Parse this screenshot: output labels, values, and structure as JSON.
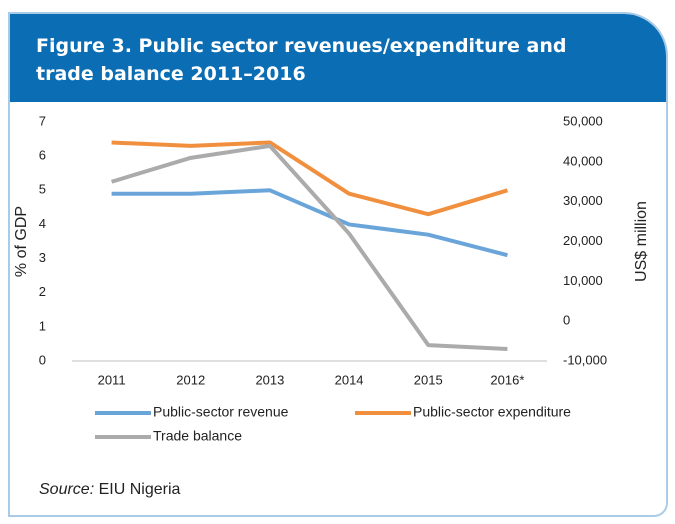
{
  "chart_data": {
    "type": "line",
    "title": "Figure 3. Public sector revenues/expenditure and trade balance 2011–2016",
    "categories": [
      "2011",
      "2012",
      "2013",
      "2014",
      "2015",
      "2016*"
    ],
    "series": [
      {
        "name": "Public-sector revenue",
        "color": "#6aa5da",
        "values": [
          4.9,
          4.9,
          5.0,
          4.0,
          3.7,
          3.1
        ]
      },
      {
        "name": "Public-sector expenditure",
        "color": "#f0903f",
        "values": [
          6.4,
          6.3,
          6.4,
          4.9,
          4.3,
          5.0
        ]
      },
      {
        "name": "Trade balance",
        "color": "#ababab",
        "axis": "y2",
        "values": [
          35000,
          41000,
          44000,
          22000,
          -6000,
          -7000
        ]
      }
    ],
    "ylabel": "% of GDP",
    "y2label": "US$ million",
    "ylim": [
      0,
      7
    ],
    "yticks": [
      0,
      1,
      2,
      3,
      4,
      5,
      6,
      7
    ],
    "y2lim": [
      -10000,
      50000
    ],
    "y2ticks": [
      {
        "value": -10000,
        "label": "-10,000"
      },
      0,
      {
        "value": 10000,
        "label": "10,000"
      },
      {
        "value": 20000,
        "label": "20,000"
      },
      {
        "value": 30000,
        "label": "30,000"
      },
      {
        "value": 40000,
        "label": "40,000"
      },
      {
        "value": 50000,
        "label": "50,000"
      }
    ],
    "source_label": "Source:",
    "source": "EIU Nigeria"
  }
}
